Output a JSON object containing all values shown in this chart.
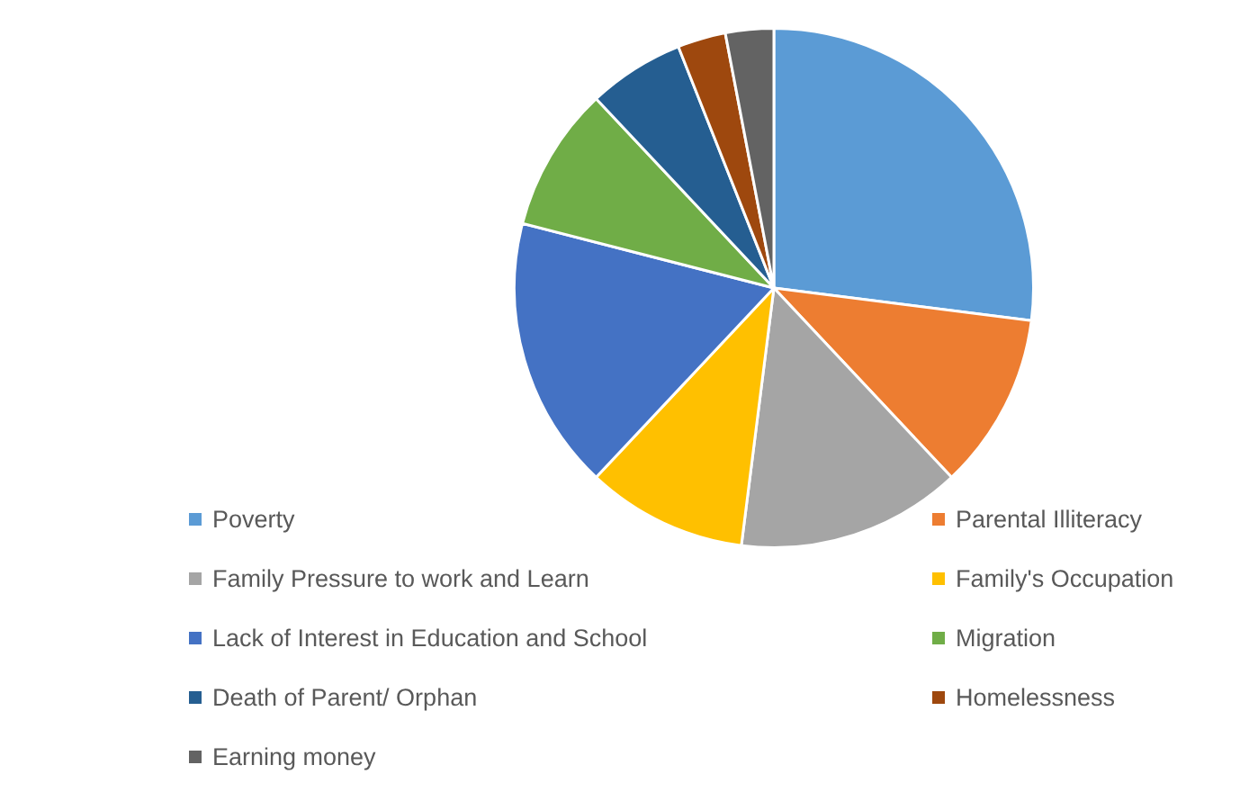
{
  "chart_data": {
    "type": "pie",
    "legend": "bottom",
    "categories": [
      "Poverty",
      "Parental Illiteracy",
      "Family Pressure to work and Learn",
      "Family's Occupation",
      "Lack of Interest in Education and School",
      "Migration",
      "Death of Parent/ Orphan",
      "Homelessness",
      "Earning money"
    ],
    "values": [
      27,
      11,
      14,
      10,
      17,
      9,
      6,
      3,
      3
    ],
    "colors": [
      "#5b9bd5",
      "#ed7d31",
      "#a5a5a5",
      "#ffc000",
      "#4472c4",
      "#70ad47",
      "#255e91",
      "#9e480e",
      "#636363"
    ]
  }
}
